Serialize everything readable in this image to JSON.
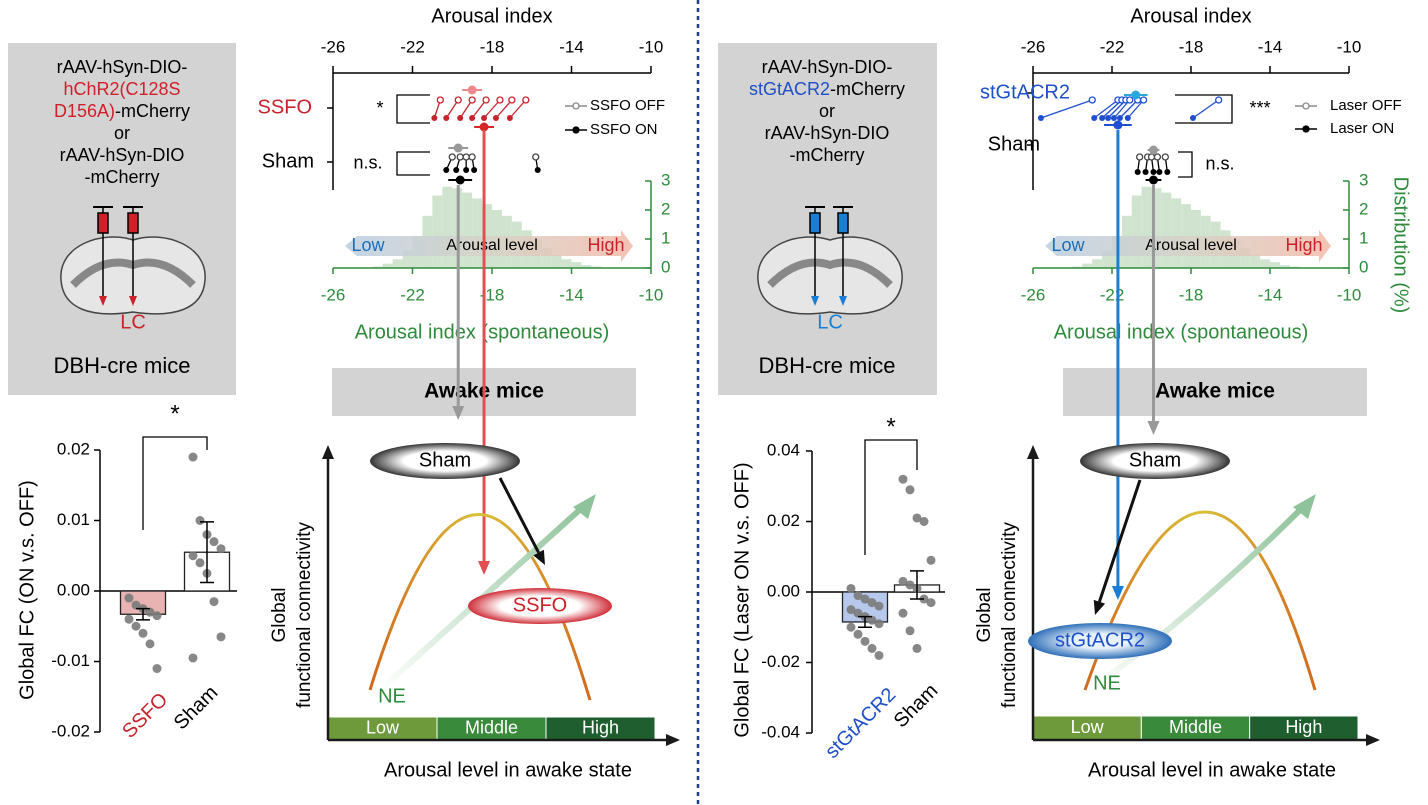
{
  "panels": [
    {
      "construct": {
        "lines": [
          [
            {
              "text": "rAAV-hSyn-DIO-"
            }
          ],
          [
            {
              "text": "hChR2(C128S",
              "color": "#d0202a"
            }
          ],
          [
            {
              "text": "D156A)",
              "color": "#d0202a"
            },
            {
              "text": "-mCherry"
            }
          ],
          [
            {
              "text": "or"
            }
          ],
          [
            {
              "text": "rAAV-hSyn-DIO"
            }
          ],
          [
            {
              "text": "-mCherry"
            }
          ]
        ],
        "region": "LC",
        "region_color": "#d0202a",
        "mice": "DBH-cre mice"
      },
      "awake": "Awake mice",
      "schematic": {
        "ylabel": [
          "Global",
          "functional connectivity"
        ],
        "xlabel": "Arousal level in awake state",
        "levels": [
          {
            "label": "Low",
            "color": "#6e9a3b"
          },
          {
            "label": "Middle",
            "color": "#3a8a3c"
          },
          {
            "label": "High",
            "color": "#1f5e2f"
          }
        ],
        "sham": "Sham",
        "treatment": "SSFO",
        "treatment_color": "#d0202a",
        "ne": "NE"
      }
    },
    {
      "construct": {
        "lines": [
          [
            {
              "text": "rAAV-hSyn-DIO-"
            }
          ],
          [
            {
              "text": "stGtACR2",
              "color": "#1f4fc9"
            },
            {
              "text": "-mCherry"
            }
          ],
          [
            {
              "text": "or"
            }
          ],
          [
            {
              "text": "rAAV-hSyn-DIO"
            }
          ],
          [
            {
              "text": "-mCherry"
            }
          ]
        ],
        "region": "LC",
        "region_color": "#1a7fd4",
        "mice": "DBH-cre mice"
      },
      "awake": "Awake mice",
      "schematic": {
        "ylabel": [
          "Global",
          "functional connectivity"
        ],
        "xlabel": "Arousal level in awake state",
        "levels": [
          {
            "label": "Low",
            "color": "#6e9a3b"
          },
          {
            "label": "Middle",
            "color": "#3a8a3c"
          },
          {
            "label": "High",
            "color": "#1f5e2f"
          }
        ],
        "sham": "Sham",
        "treatment": "stGtACR2",
        "treatment_color": "#1f4fc9",
        "ne": "NE"
      }
    }
  ],
  "chart_data": [
    {
      "type": "paired",
      "xlabel": "Arousal index",
      "xlim": [
        -26,
        -10
      ],
      "xticks": [
        -26,
        -22,
        -18,
        -14,
        -10
      ],
      "rows": [
        {
          "name": "SSFO",
          "color": "#c8232c",
          "sig": "*",
          "off": [
            -20.6,
            -19.7,
            -19.0,
            -18.3,
            -17.6,
            -17.0,
            -16.3
          ],
          "on": [
            -20.9,
            -20.3,
            -19.6,
            -19.0,
            -18.4,
            -17.8,
            -17.1
          ],
          "off_mean": -19.0,
          "off_err": 0.5,
          "on_mean": -18.4,
          "on_err": 0.5,
          "off_color": "#c8232c",
          "on_color": "#c8232c",
          "off_mean_color": "#f08a8a",
          "on_mean_color": "#d62728"
        },
        {
          "name": "Sham",
          "color": "#000000",
          "sig": "n.s.",
          "off": [
            -20.0,
            -19.6,
            -19.3,
            -19.0,
            -15.8
          ],
          "on": [
            -20.3,
            -19.8,
            -19.3,
            -18.9,
            -15.7
          ],
          "off_mean": -19.7,
          "off_err": 0.5,
          "on_mean": -19.6,
          "on_err": 0.6,
          "off_color": "#444444",
          "on_color": "#000000",
          "off_mean_color": "#999999",
          "on_mean_color": "#000000"
        }
      ],
      "legend": [
        {
          "label": "SSFO OFF",
          "color": "#888888"
        },
        {
          "label": "SSFO ON",
          "color": "#000000"
        }
      ],
      "distribution": {
        "bins": [
          -26,
          -25.5,
          -25,
          -24.5,
          -24,
          -23.5,
          -23,
          -22.5,
          -22,
          -21.5,
          -21,
          -20.5,
          -20,
          -19.5,
          -19,
          -18.5,
          -18,
          -17.5,
          -17,
          -16.5,
          -16,
          -15.5,
          -15,
          -14.5,
          -14,
          -13.5,
          -13,
          -12.5,
          -12,
          -11.5,
          -11,
          -10.5,
          -10
        ],
        "values": [
          0,
          0,
          0,
          0,
          0.05,
          0.15,
          0.3,
          0.6,
          1.1,
          1.8,
          2.5,
          2.8,
          2.75,
          2.6,
          2.4,
          2.2,
          2.0,
          1.8,
          1.6,
          1.3,
          1.0,
          0.7,
          0.45,
          0.3,
          0.2,
          0.1,
          0.05,
          0,
          0,
          0,
          0,
          0
        ],
        "color": "#cfe3cf",
        "axis_color": "#2e8b3c",
        "xlim": [
          -26,
          -10
        ],
        "xticks": [
          -26,
          -22,
          -18,
          -14,
          -10
        ],
        "y2lim": [
          0,
          3
        ],
        "y2ticks": [
          0,
          1,
          2,
          3
        ],
        "xlabel": "Arousal index (spontaneous)",
        "arrow": {
          "low": "Low",
          "middle": "Arousal level",
          "high": "High"
        }
      }
    },
    {
      "type": "bar",
      "ylabel": "Global FC (ON v.s. OFF)",
      "categories": [
        "SSFO",
        "Sham"
      ],
      "category_colors": [
        "#c8232c",
        "#000000"
      ],
      "fills": [
        "#e9b3b3",
        "#ffffff"
      ],
      "values": [
        -0.0033,
        0.0055
      ],
      "errors": [
        0.0008,
        0.0043
      ],
      "points": [
        [
          -0.001,
          -0.002,
          -0.0025,
          -0.003,
          -0.0035,
          -0.004,
          -0.005,
          -0.006,
          -0.0075,
          -0.011
        ],
        [
          0.019,
          0.01,
          0.008,
          0.007,
          0.006,
          0.005,
          0.004,
          0.0025,
          -0.0015,
          -0.0065,
          -0.0095
        ]
      ],
      "point_color": "#7a7a7a",
      "ylim": [
        -0.02,
        0.02
      ],
      "yticks": [
        0.02,
        0.01,
        {
          "value": 0,
          "label": "0.00"
        },
        -0.01,
        -0.02
      ],
      "sig": "*"
    },
    {
      "type": "paired",
      "xlabel": "Arousal index",
      "xlim": [
        -26,
        -10
      ],
      "xticks": [
        -26,
        -22,
        -18,
        -14,
        -10
      ],
      "rows": [
        {
          "name": "stGtACR2",
          "color": "#1f4fc9",
          "sig": "***",
          "off": [
            -23.0,
            -21.7,
            -21.5,
            -21.3,
            -21.1,
            -20.7,
            -20.4,
            -16.6
          ],
          "on": [
            -25.6,
            -22.9,
            -22.5,
            -22.2,
            -21.9,
            -21.6,
            -21.2,
            -17.9
          ],
          "off_mean": -20.8,
          "off_err": 0.6,
          "on_mean": -21.7,
          "on_err": 0.7,
          "off_color": "#1f4fd0",
          "on_color": "#1f4fd0",
          "off_mean_color": "#29a8e0",
          "on_mean_color": "#1f4fd0"
        },
        {
          "name": "Sham",
          "color": "#000000",
          "sig": "n.s.",
          "off": [
            -20.6,
            -20.2,
            -20.0,
            -19.7,
            -19.3
          ],
          "on": [
            -20.7,
            -20.3,
            -19.9,
            -19.6,
            -19.2
          ],
          "off_mean": -19.9,
          "off_err": 0.3,
          "on_mean": -19.9,
          "on_err": 0.4,
          "off_color": "#444444",
          "on_color": "#000000",
          "off_mean_color": "#999999",
          "on_mean_color": "#000000"
        }
      ],
      "legend": [
        {
          "label": "Laser OFF",
          "color": "#888888"
        },
        {
          "label": "Laser ON",
          "color": "#000000"
        }
      ],
      "distribution": {
        "bins": [
          -26,
          -25.5,
          -25,
          -24.5,
          -24,
          -23.5,
          -23,
          -22.5,
          -22,
          -21.5,
          -21,
          -20.5,
          -20,
          -19.5,
          -19,
          -18.5,
          -18,
          -17.5,
          -17,
          -16.5,
          -16,
          -15.5,
          -15,
          -14.5,
          -14,
          -13.5,
          -13,
          -12.5,
          -12,
          -11.5,
          -11,
          -10.5,
          -10
        ],
        "values": [
          0,
          0,
          0,
          0,
          0.05,
          0.15,
          0.3,
          0.6,
          1.1,
          1.8,
          2.5,
          2.8,
          2.75,
          2.6,
          2.4,
          2.2,
          2.0,
          1.8,
          1.6,
          1.3,
          1.0,
          0.7,
          0.45,
          0.3,
          0.2,
          0.1,
          0.05,
          0,
          0,
          0,
          0,
          0
        ],
        "color": "#cfe3cf",
        "axis_color": "#2e8b3c",
        "xlim": [
          -26,
          -10
        ],
        "xticks": [
          -26,
          -22,
          -18,
          -14,
          -10
        ],
        "y2lim": [
          0,
          3
        ],
        "y2ticks": [
          0,
          1,
          2,
          3
        ],
        "xlabel": "Arousal index (spontaneous)",
        "y2label": "Distribution (%)",
        "arrow": {
          "low": "Low",
          "middle": "Arousal level",
          "high": "High"
        }
      }
    },
    {
      "type": "bar",
      "ylabel": "Global FC (Laser ON v.s. OFF)",
      "categories": [
        "stGtACR2",
        "Sham"
      ],
      "category_colors": [
        "#1f4fc9",
        "#000000"
      ],
      "fills": [
        "#b6c9ec",
        "#ffffff"
      ],
      "values": [
        -0.0085,
        0.002
      ],
      "errors": [
        0.0015,
        0.004
      ],
      "points": [
        [
          0.001,
          -0.001,
          -0.002,
          -0.003,
          -0.004,
          -0.005,
          -0.006,
          -0.007,
          -0.008,
          -0.009,
          -0.01,
          -0.012,
          -0.014,
          -0.016,
          -0.018
        ],
        [
          0.032,
          0.029,
          0.021,
          0.02,
          0.009,
          0.003,
          0.002,
          0.001,
          -0.002,
          -0.003,
          -0.006,
          -0.011,
          -0.016
        ]
      ],
      "point_color": "#7a7a7a",
      "ylim": [
        -0.04,
        0.04
      ],
      "yticks": [
        0.04,
        0.02,
        {
          "value": 0,
          "label": "0.00"
        },
        -0.02,
        -0.04
      ],
      "sig": "*"
    }
  ]
}
